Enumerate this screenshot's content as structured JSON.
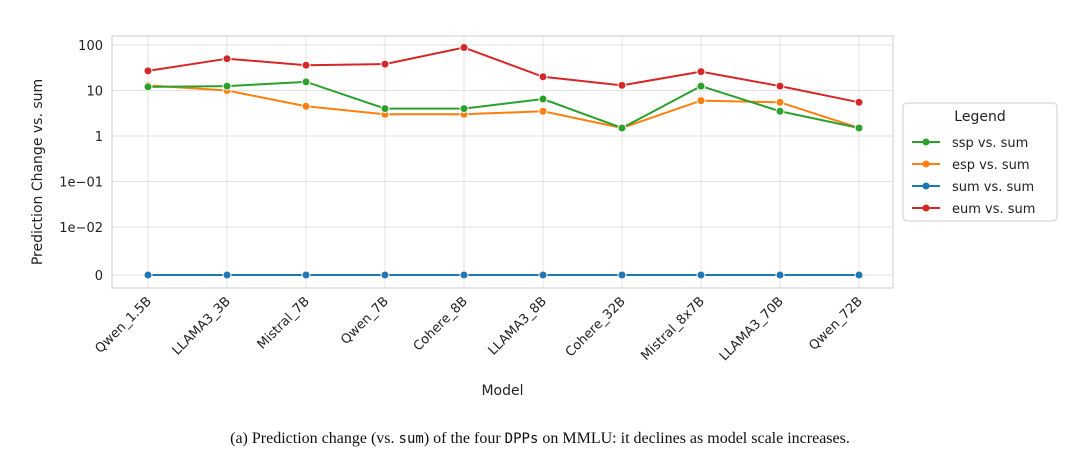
{
  "chart_data": {
    "type": "line",
    "xlabel": "Model",
    "ylabel": "Prediction Change vs. sum",
    "y_scale": "symlog",
    "ylim": [
      0,
      100
    ],
    "y_ticks": [
      "100",
      "10",
      "1",
      "1e−01",
      "1e−02",
      "0"
    ],
    "grid": true,
    "legend_placement": "outside-right",
    "categories": [
      "Qwen_1.5B",
      "LLAMA3_3B",
      "Mistral_7B",
      "Qwen_7B",
      "Cohere_8B",
      "LLAMA3_8B",
      "Cohere_32B",
      "Mistral_8x7B",
      "LLAMA3_70B",
      "Qwen_72B"
    ],
    "legend_title": "Legend",
    "series": [
      {
        "name": "ssp vs. sum",
        "color": "#2ca02c",
        "values": [
          12,
          12.5,
          15.5,
          4,
          4,
          6.5,
          1.5,
          12.5,
          3.5,
          1.5
        ]
      },
      {
        "name": "esp vs. sum",
        "color": "#ff7f0e",
        "values": [
          13,
          10,
          4.5,
          3,
          3,
          3.5,
          1.5,
          6,
          5.5,
          1.5
        ]
      },
      {
        "name": "sum vs. sum",
        "color": "#1f77b4",
        "values": [
          0,
          0,
          0,
          0,
          0,
          0,
          0,
          0,
          0,
          0
        ]
      },
      {
        "name": "eum vs. sum",
        "color": "#d62728",
        "values": [
          27,
          50,
          36,
          38,
          88,
          20,
          13,
          26,
          12.5,
          5.5
        ]
      }
    ]
  },
  "caption": {
    "prefix": "(a) Prediction change (vs. ",
    "mono1": "sum",
    "middle": ") of the four ",
    "mono2": "DPPs",
    "suffix": " on MMLU: it declines as model scale increases."
  }
}
